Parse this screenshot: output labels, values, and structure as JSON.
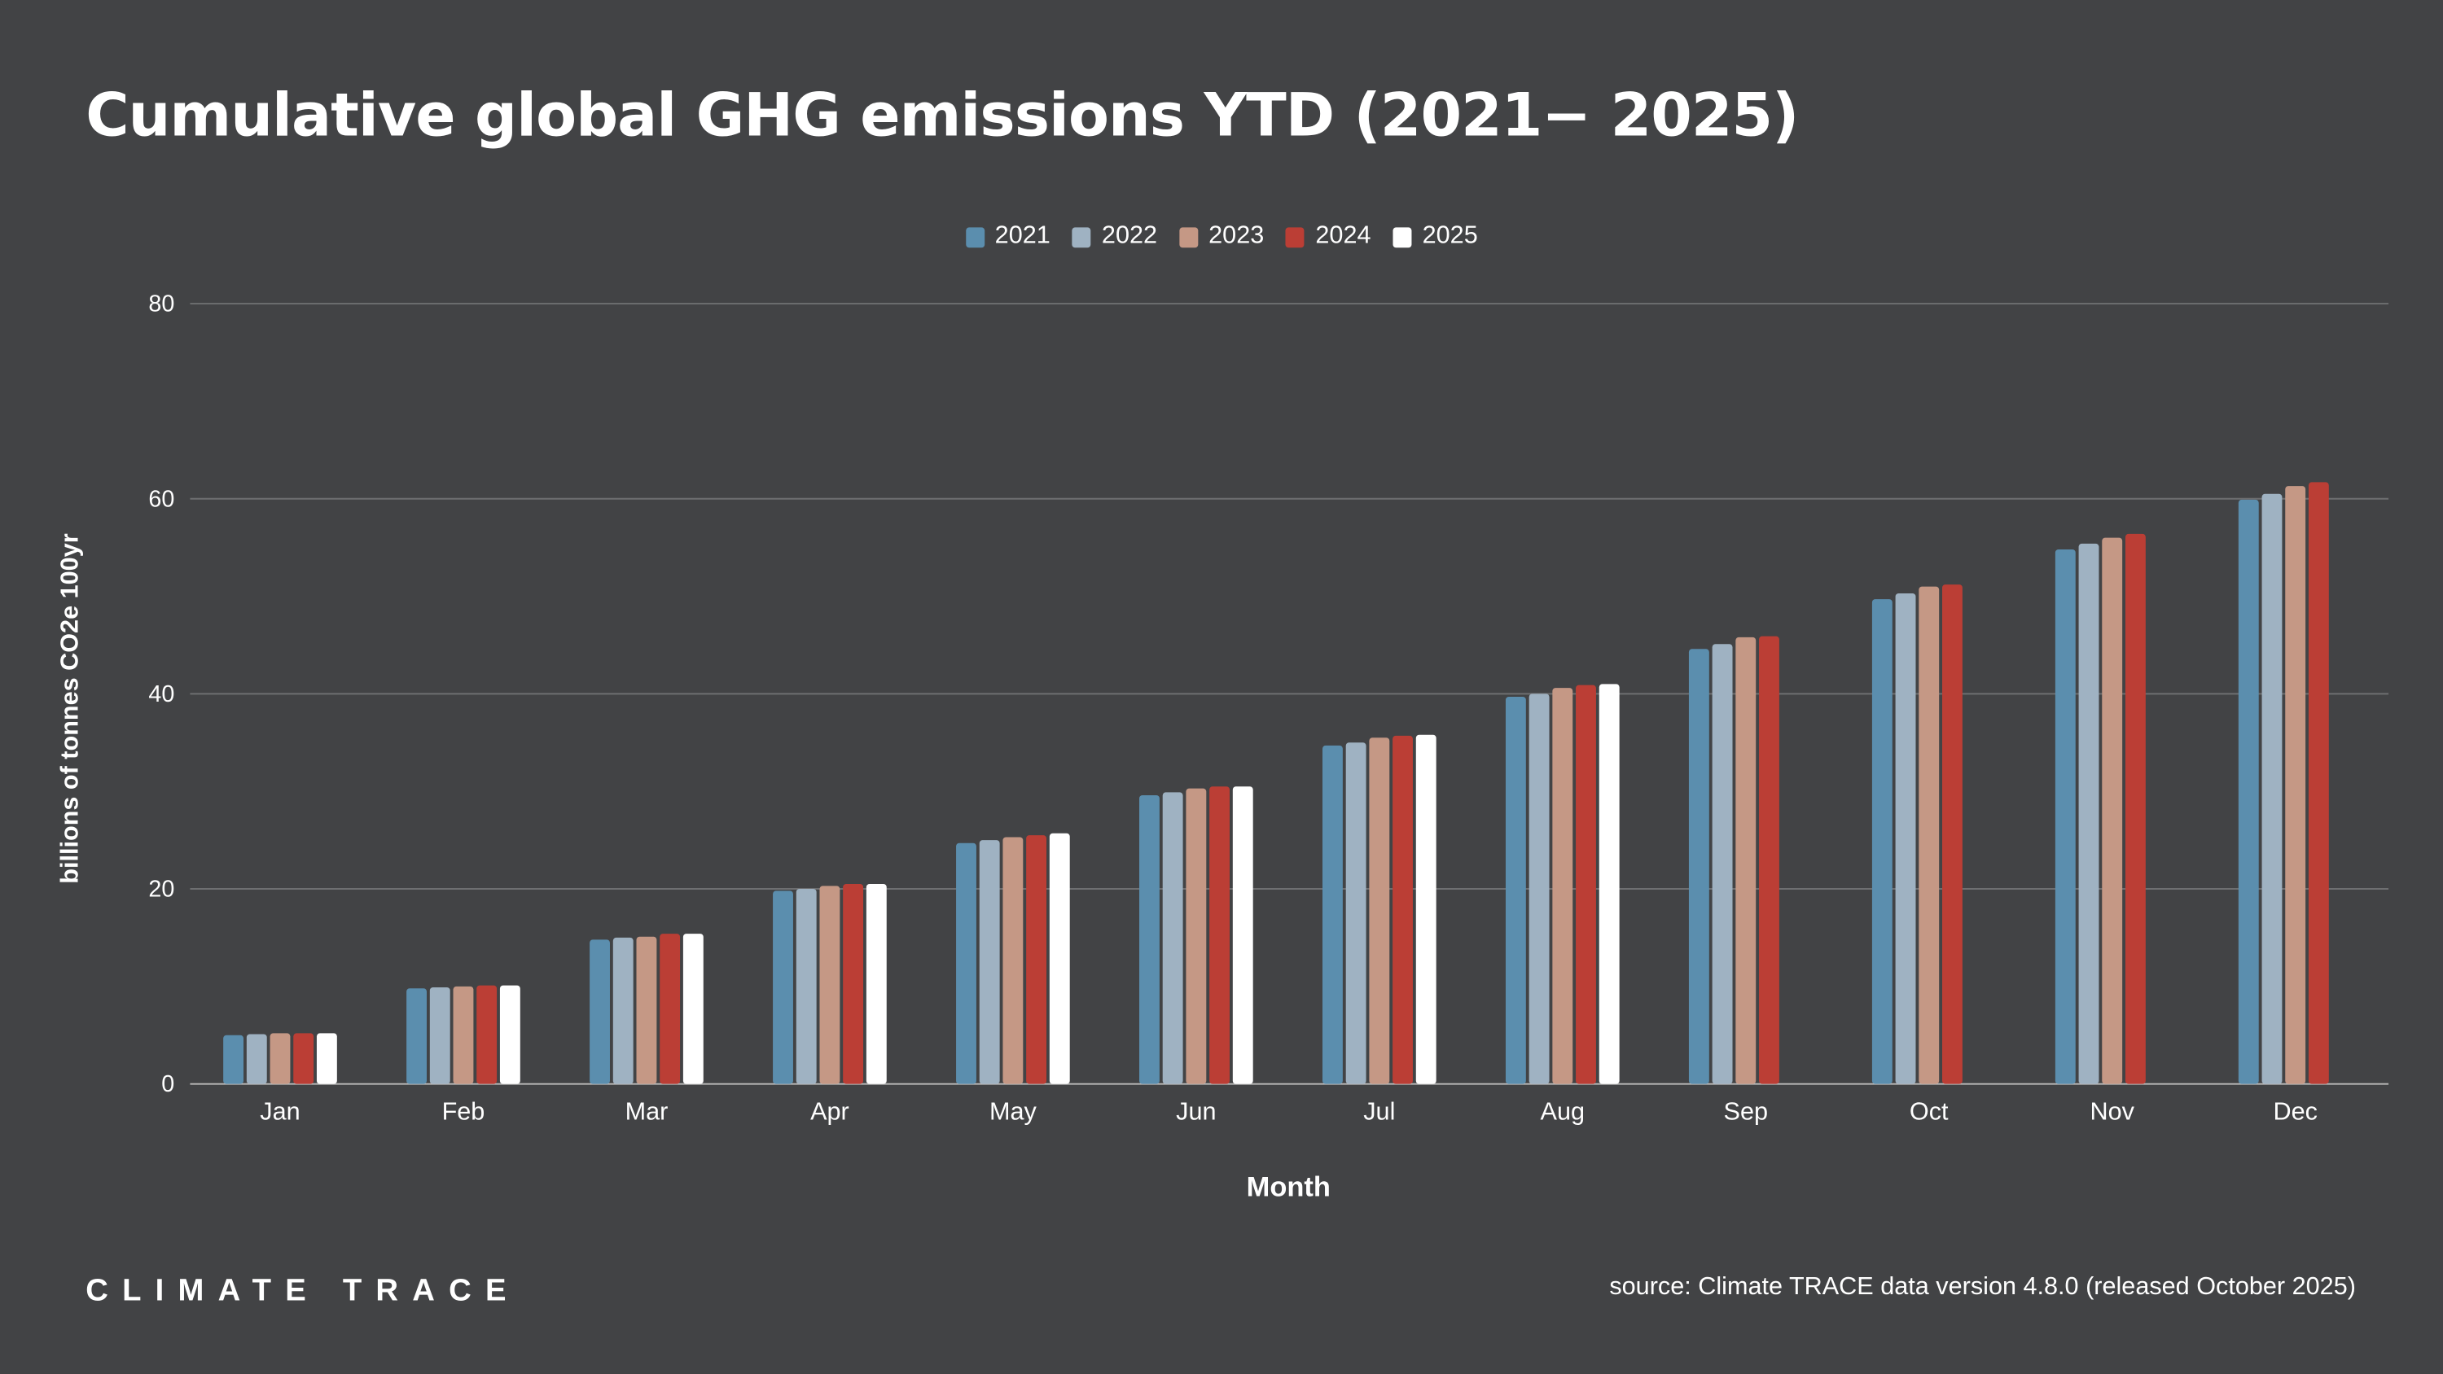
{
  "title": "Cumulative global GHG emissions YTD (2021− 2025)",
  "logo": "CLIMATE TRACE",
  "source": "source: Climate TRACE data version 4.8.0 (released October 2025)",
  "chart_data": {
    "type": "bar",
    "title": "Cumulative global GHG emissions YTD (2021− 2025)",
    "xlabel": "Month",
    "ylabel": "billions of tonnes CO2e 100yr",
    "ylim": [
      0,
      80
    ],
    "yticks": [
      0,
      20,
      40,
      60,
      80
    ],
    "grid": true,
    "legend": "top-center",
    "categories": [
      "Jan",
      "Feb",
      "Mar",
      "Apr",
      "May",
      "Jun",
      "Jul",
      "Aug",
      "Sep",
      "Oct",
      "Nov",
      "Dec"
    ],
    "series": [
      {
        "name": "2021",
        "color": "#5b8eae",
        "values": [
          5.0,
          9.8,
          14.8,
          19.8,
          24.7,
          29.6,
          34.7,
          39.7,
          44.6,
          49.7,
          54.8,
          59.9
        ]
      },
      {
        "name": "2022",
        "color": "#9fb2c2",
        "values": [
          5.1,
          9.9,
          15.0,
          20.0,
          25.0,
          29.9,
          35.0,
          40.0,
          45.1,
          50.3,
          55.4,
          60.5
        ]
      },
      {
        "name": "2023",
        "color": "#c59885",
        "values": [
          5.2,
          10.0,
          15.1,
          20.3,
          25.3,
          30.3,
          35.5,
          40.6,
          45.8,
          51.0,
          56.0,
          61.3
        ]
      },
      {
        "name": "2024",
        "color": "#bb3e35",
        "values": [
          5.2,
          10.1,
          15.4,
          20.5,
          25.5,
          30.5,
          35.7,
          40.9,
          45.9,
          51.2,
          56.4,
          61.7
        ]
      },
      {
        "name": "2025",
        "color": "#ffffff",
        "values": [
          5.2,
          10.1,
          15.4,
          20.5,
          25.7,
          30.5,
          35.8,
          41.0,
          null,
          null,
          null,
          null
        ]
      }
    ]
  }
}
